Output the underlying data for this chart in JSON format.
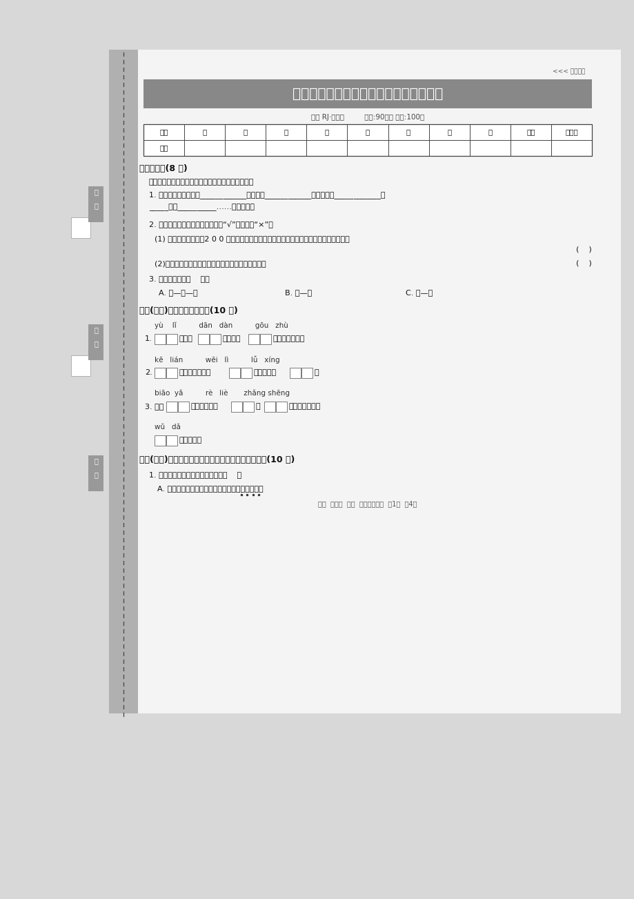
{
  "bg_outer": "#e0e0e0",
  "paper_bg": "#f6f6f6",
  "left_bar_color": "#aaaaaa",
  "title_bar_color": "#888888",
  "title_text": "郑州市上街区第一学期期末学业水平测试",
  "stamp_text": "<<< 超凡制版",
  "info_line": "语文 RJ·三年级         时间:90分钟 分数:100分",
  "table_headers": [
    "题号",
    "一",
    "二",
    "三",
    "四",
    "五",
    "六",
    "七",
    "八",
    "总分",
    "评卷人"
  ],
  "s1_title": "一、听力。(8 分)",
  "s1_inst": "先看下面要求，再认真听阅读材料，完成以下习题。",
  "s1_q1a": "1. 世界上的植物有的能____________，有的会____________，还有的会____________能",
  "s1_q1b": "_____，会__________……真奇妙啊！",
  "s1_q2_intro": "2. 根据短文内容进行判断，对的打“√”，错的打“×”。",
  "s1_q2_1": "(1) 毛污苔的叶子上有2 0 0 多根小绒毛，小绒毛还能分泌出一种黏性很强、很甜的液体。",
  "s1_q2_2": "(2)没听过音乐的水稺要比听过音乐的水稺长得茂盛。",
  "s1_q3": "3. 短文的结构是（    ）。",
  "s1_q3_a": "A. 总—分—总",
  "s1_q3_b": "B. 总—分",
  "s1_q3_c": "C. 分—总",
  "s2_title": "二、(改编)看拼音，写词语。(10 分)",
  "s2_py1": "yù    lǐ          dān   dàn          gōu   zhù",
  "s2_sent1_pre": "1.",
  "s2_sent1_mid1": "散发出",
  "s2_sent1_mid2": "的香味，",
  "s2_sent1_end": "了小朋友的脚。",
  "s2_py2": "kē   lián          wēi   lì          lǚ   xíng",
  "s2_sent2_pre": "2.",
  "s2_sent2_mid1": "的小蝙蛀在牛的",
  "s2_sent2_mid2": "进行了一次",
  "s2_sent2_end": "。",
  "s2_py3": "biāo  yǎ          rè   liè       zhǎng shēng",
  "s2_sent3_pre": "3. 她的",
  "s2_sent3_mid1": "获得了观众的",
  "s2_sent3_mid2": "的",
  "s2_sent3_end": "，最后，被授予",
  "s2_py4": "wǔ   dǎ",
  "s2_sent4_end": "类一等奖。",
  "s3_title": "三、(改编)把下面各题中正确选项的序号写在括号里。(10 分)",
  "s3_q1": "1. 下列加点词沿使用错误的一项是（    ）",
  "s3_q1a": "A. 每次看到他的时候，他都是一本正经地看着书。",
  "footer": "语文  三年级  上册  郑州市上街区  第1页  关4页",
  "label_tingli": [
    "听",
    "力"
  ],
  "label_banji": [
    "班",
    "级"
  ],
  "label_xuehao": [
    "学",
    "号"
  ]
}
